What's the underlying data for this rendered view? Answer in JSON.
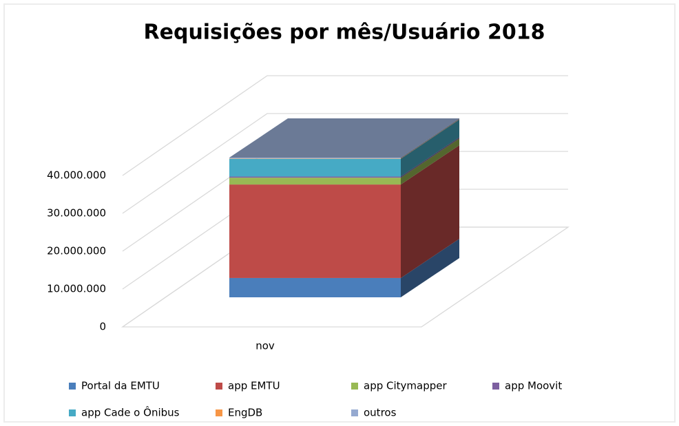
{
  "chart_data": {
    "type": "bar3d_stacked",
    "title": "Requisições por mês/Usuário 2018",
    "categories": [
      "nov"
    ],
    "series": [
      {
        "name": "Portal da EMTU",
        "color": "#4a7ebb",
        "values": [
          5100000
        ]
      },
      {
        "name": "app EMTU",
        "color": "#be4b48",
        "values": [
          24700000
        ]
      },
      {
        "name": "app Citymapper",
        "color": "#98b954",
        "values": [
          1800000
        ]
      },
      {
        "name": "app Moovit",
        "color": "#7d60a0",
        "values": [
          300000
        ]
      },
      {
        "name": "app Cade o Ônibus",
        "color": "#46aac5",
        "values": [
          4700000
        ]
      },
      {
        "name": "EngDB",
        "color": "#f79646",
        "values": [
          100000
        ]
      },
      {
        "name": "outros",
        "color": "#95a9d0",
        "values": [
          200000
        ]
      }
    ],
    "ylim": [
      0,
      40000000
    ],
    "yticks": [
      0,
      {
        "value": 10000000,
        "label": "10.000.000"
      },
      {
        "value": 20000000,
        "label": "20.000.000"
      },
      {
        "value": 30000000,
        "label": "30.000.000"
      },
      {
        "value": 40000000,
        "label": "40.000.000"
      }
    ],
    "grid": true
  }
}
